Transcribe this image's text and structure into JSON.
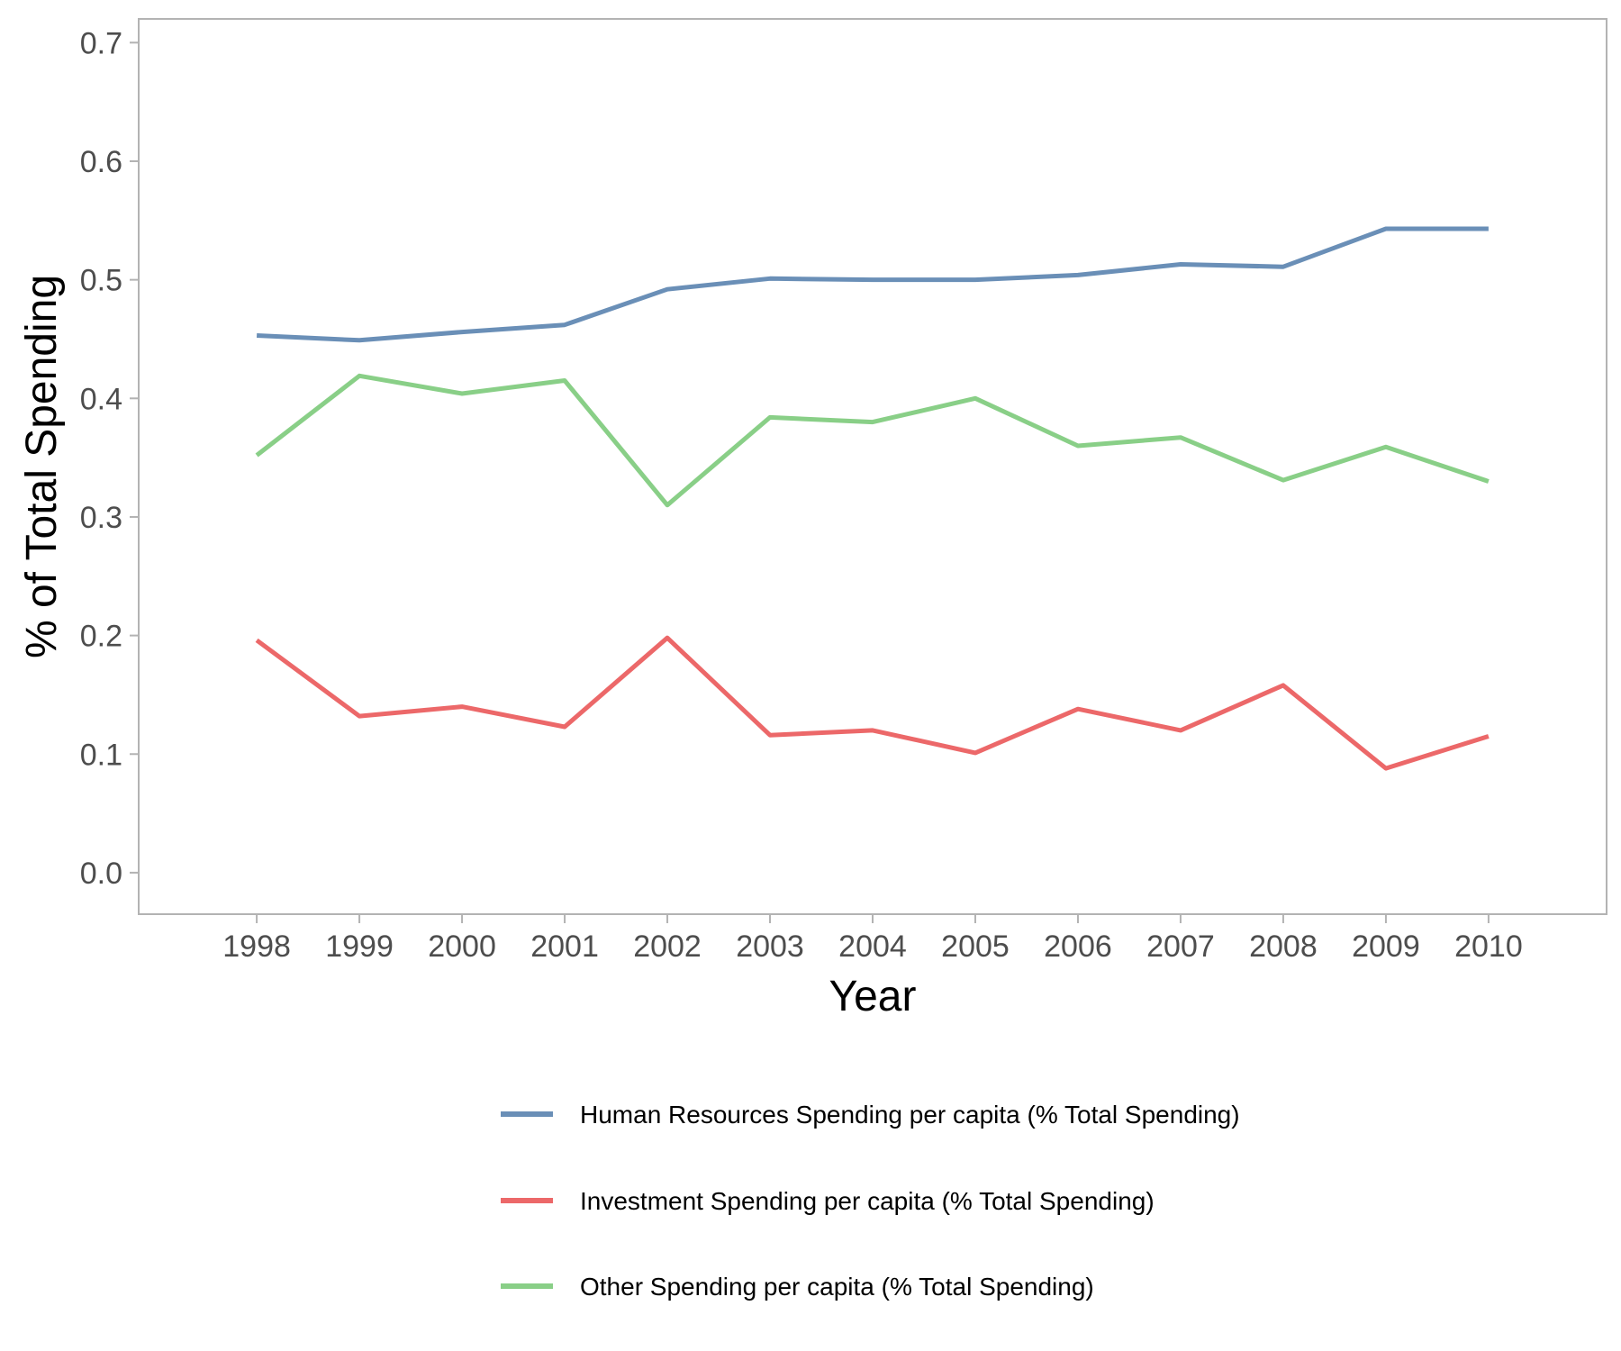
{
  "chart_data": {
    "type": "line",
    "title": "",
    "xlabel": "Year",
    "ylabel": "% of Total Spending",
    "x": [
      1998,
      1999,
      2000,
      2001,
      2002,
      2003,
      2004,
      2005,
      2006,
      2007,
      2008,
      2009,
      2010
    ],
    "x_ticks": [
      "1998",
      "1999",
      "2000",
      "2001",
      "2002",
      "2003",
      "2004",
      "2005",
      "2006",
      "2007",
      "2008",
      "2009",
      "2010"
    ],
    "xlim": [
      1996.85,
      2011.15
    ],
    "ylim": [
      -0.035,
      0.72
    ],
    "y_ticks": [
      "0.0",
      "0.1",
      "0.2",
      "0.3",
      "0.4",
      "0.5",
      "0.6",
      "0.7"
    ],
    "y_tick_values": [
      0.0,
      0.1,
      0.2,
      0.3,
      0.4,
      0.5,
      0.6,
      0.7
    ],
    "grid": false,
    "legend_position": "bottom",
    "series": [
      {
        "name": "Human Resources Spending per capita (% Total Spending)",
        "color": "#6a8fb7",
        "values": [
          0.453,
          0.449,
          0.456,
          0.462,
          0.492,
          0.501,
          0.5,
          0.5,
          0.504,
          0.513,
          0.511,
          0.543,
          0.543
        ]
      },
      {
        "name": "Investment Spending per capita (% Total Spending)",
        "color": "#ec6869",
        "values": [
          0.196,
          0.132,
          0.14,
          0.123,
          0.198,
          0.116,
          0.12,
          0.101,
          0.138,
          0.12,
          0.158,
          0.088,
          0.115
        ]
      },
      {
        "name": "Other Spending per capita (% Total Spending)",
        "color": "#89cf87",
        "values": [
          0.352,
          0.419,
          0.404,
          0.415,
          0.31,
          0.384,
          0.38,
          0.4,
          0.36,
          0.367,
          0.331,
          0.359,
          0.33
        ]
      }
    ]
  }
}
